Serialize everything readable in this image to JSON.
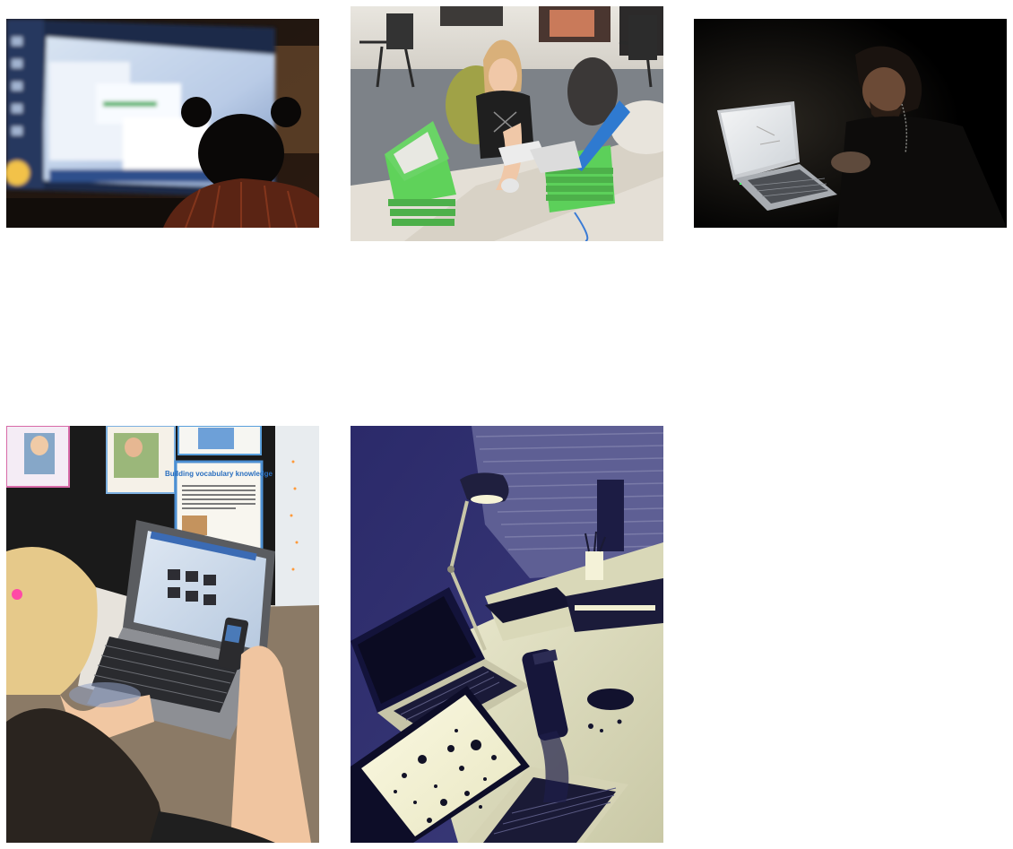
{
  "gallery": {
    "tiles": [
      {
        "subject": "person-silhouette-in-front-of-monitor",
        "tone": "dark-blurred"
      },
      {
        "subject": "woman-at-desk-with-green-laptops",
        "tone": "office-daylight"
      },
      {
        "subject": "man-using-laptop-in-dark",
        "tone": "low-light"
      },
      {
        "subject": "children-using-laptop-in-classroom",
        "tone": "classroom"
      },
      {
        "subject": "desk-with-laptops-lamp-and-bottle",
        "tone": "duotone-navy-cream"
      }
    ],
    "poster": {
      "title": "Building vocabulary knowledge"
    }
  }
}
